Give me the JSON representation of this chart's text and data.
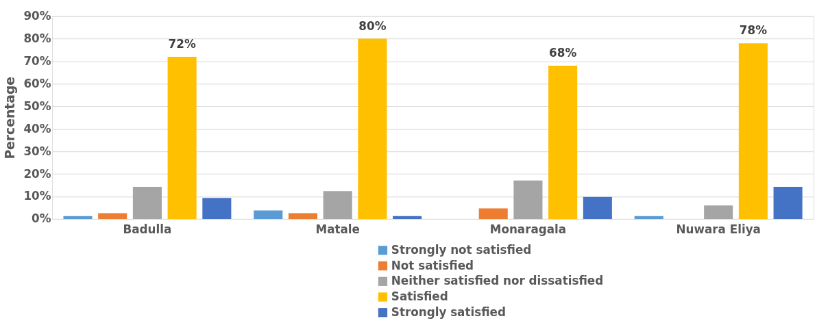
{
  "chart_data": {
    "type": "bar",
    "ylabel": "Percentage",
    "categories": [
      "Badulla",
      "Matale",
      "Monaragala",
      "Nuwara Eliya"
    ],
    "series": [
      {
        "name": "Strongly not satisfied",
        "color": "#5b9bd5",
        "values": [
          1.3,
          3.8,
          0,
          1.3
        ]
      },
      {
        "name": "Not satisfied",
        "color": "#ed7d31",
        "values": [
          2.6,
          2.6,
          4.7,
          0
        ]
      },
      {
        "name": "Neither satisfied nor dissatisfied",
        "color": "#a5a5a5",
        "values": [
          14.3,
          12.4,
          17.1,
          6
        ]
      },
      {
        "name": "Satisfied",
        "color": "#ffc000",
        "values": [
          72,
          80,
          68,
          78
        ],
        "value_labels": [
          "72%",
          "80%",
          "68%",
          "78%"
        ]
      },
      {
        "name": "Strongly satisfied",
        "color": "#4472c4",
        "values": [
          9.3,
          1.3,
          9.8,
          14.3
        ]
      }
    ],
    "ylim": [
      0,
      90
    ],
    "yticks": [
      {
        "value": 0,
        "label": "0%"
      },
      {
        "value": 10,
        "label": "10%"
      },
      {
        "value": 20,
        "label": "20%"
      },
      {
        "value": 30,
        "label": "30%"
      },
      {
        "value": 40,
        "label": "40%"
      },
      {
        "value": 50,
        "label": "50%"
      },
      {
        "value": 60,
        "label": "60%"
      },
      {
        "value": 70,
        "label": "70%"
      },
      {
        "value": 80,
        "label": "80%"
      },
      {
        "value": 90,
        "label": "90%"
      }
    ],
    "grid": "y",
    "legend": "bottom"
  }
}
